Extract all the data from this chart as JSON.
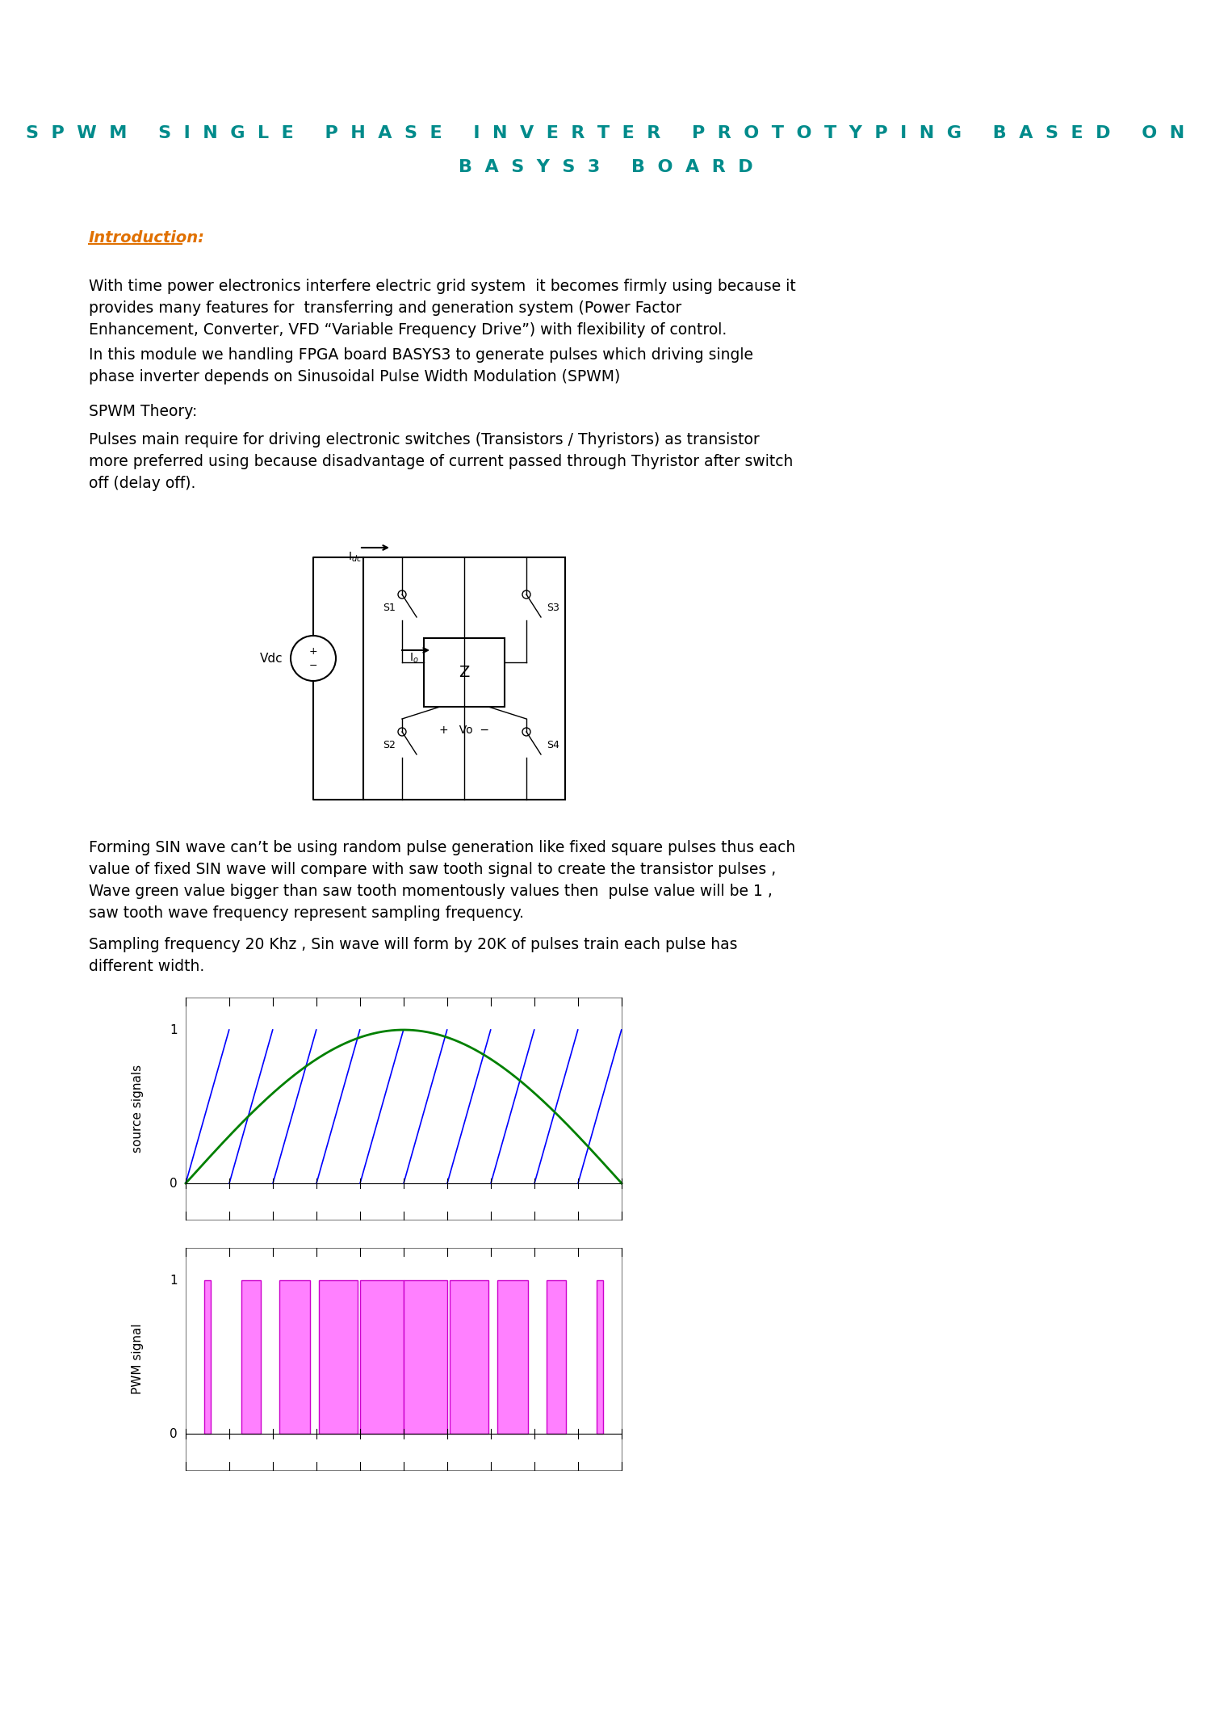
{
  "title_line1": "SPWM SINGLE PHASE INVERTER PROTOTYPING BASED ON",
  "title_line2": "BASYS3 BOARD",
  "title_color": "#008B8B",
  "intro_label": "Introduction:",
  "intro_color": "#E07000",
  "para1": "With time power electronics interfere electric grid system  it becomes firmly using because it\nprovides many features for  transferring and generation system (Power Factor\nEnhancement, Converter, VFD “Variable Frequency Drive”) with flexibility of control.",
  "para2": "In this module we handling FPGA board BASYS3 to generate pulses which driving single\nphase inverter depends on Sinusoidal Pulse Width Modulation (SPWM)",
  "para3": "SPWM Theory:",
  "para4": "Pulses main require for driving electronic switches (Transistors / Thyristors) as transistor\nmore preferred using because disadvantage of current passed through Thyristor after switch\noff (delay off).",
  "para5": "Forming SIN wave can’t be using random pulse generation like fixed square pulses thus each\nvalue of fixed SIN wave will compare with saw tooth signal to create the transistor pulses ,\nWave green value bigger than saw tooth momentously values then  pulse value will be 1 ,\nsaw tooth wave frequency represent sampling frequency.",
  "para6": "Sampling frequency 20 Khz , Sin wave will form by 20K of pulses train each pulse has\ndifferent width.",
  "bg_color": "#ffffff",
  "text_color": "#000000",
  "body_fontsize": 13.5,
  "title_fontsize": 16
}
